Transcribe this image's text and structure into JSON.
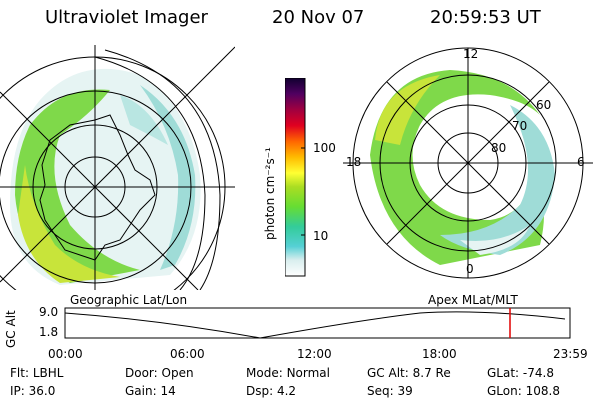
{
  "header": {
    "instrument": "Ultraviolet Imager",
    "date": "20 Nov 07",
    "time": "20:59:53 UT"
  },
  "colorbar": {
    "unit_label": "photon cm⁻²s⁻¹",
    "ticks": [
      "100",
      "10"
    ]
  },
  "panels": {
    "left_label": "Geographic Lat/Lon",
    "right_label": "Apex MLat/MLT",
    "right_grid_labels": {
      "mlt_12": "12",
      "mlt_18": "18",
      "mlt_6": "6",
      "mlt_0": "0",
      "lat_60": "60",
      "lat_70": "70",
      "lat_80": "80"
    }
  },
  "altitude_plot": {
    "ylabel": "GC Alt",
    "yticks": [
      "9.0",
      "1.8"
    ],
    "xticks": [
      "00:00",
      "06:00",
      "12:00",
      "18:00",
      "23:59"
    ],
    "marker_color": "#e00000"
  },
  "info_row1": [
    {
      "label": "Flt:",
      "value": "LBHL"
    },
    {
      "label": "Door:",
      "value": "Open"
    },
    {
      "label": "Mode:",
      "value": "Normal"
    },
    {
      "label": "GC Alt:",
      "value": "8.7 Re"
    },
    {
      "label": "GLat:",
      "value": "-74.8"
    }
  ],
  "info_row2": [
    {
      "label": "IP:",
      "value": "36.0"
    },
    {
      "label": "Gain:",
      "value": "14"
    },
    {
      "label": "Dsp:",
      "value": "4.2"
    },
    {
      "label": "Seq:",
      "value": "39"
    },
    {
      "label": "GLon:",
      "value": "108.8"
    }
  ]
}
